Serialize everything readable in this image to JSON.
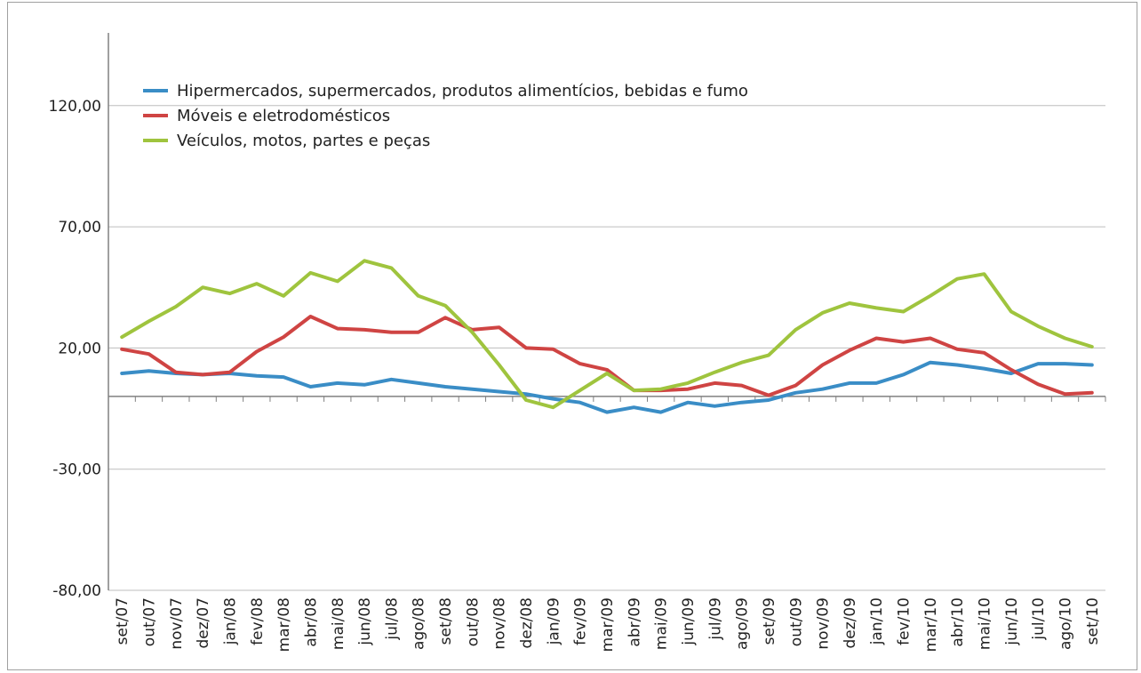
{
  "chart_data": {
    "type": "line",
    "title": "",
    "xlabel": "",
    "ylabel": "",
    "ylim": [
      -80,
      150
    ],
    "yticks": [
      "120,00",
      "70,00",
      "20,00",
      "-30,00",
      "-80,00"
    ],
    "ytick_values": [
      120,
      70,
      20,
      -30,
      -80
    ],
    "grid": true,
    "legend_position": "top-left",
    "categories": [
      "set/07",
      "out/07",
      "nov/07",
      "dez/07",
      "jan/08",
      "fev/08",
      "mar/08",
      "abr/08",
      "mai/08",
      "jun/08",
      "jul/08",
      "ago/08",
      "set/08",
      "out/08",
      "nov/08",
      "dez/08",
      "jan/09",
      "fev/09",
      "mar/09",
      "abr/09",
      "mai/09",
      "jun/09",
      "jul/09",
      "ago/09",
      "set/09",
      "out/09",
      "nov/09",
      "dez/09",
      "jan/10",
      "fev/10",
      "mar/10",
      "abr/10",
      "mai/10",
      "jun/10",
      "jul/10",
      "ago/10",
      "set/10"
    ],
    "series": [
      {
        "name": "Hipermercados, supermercados, produtos alimentícios, bebidas e fumo",
        "color": "#3a8dc6",
        "values": [
          9.5,
          10.5,
          9.5,
          9.0,
          9.5,
          8.5,
          8.0,
          4.0,
          5.5,
          4.8,
          7.0,
          5.5,
          4.0,
          3.0,
          2.0,
          1.0,
          -1.0,
          -2.5,
          -6.5,
          -4.5,
          -6.5,
          -2.5,
          -4.0,
          -2.5,
          -1.5,
          1.5,
          3.0,
          5.5,
          5.5,
          9.0,
          14.0,
          13.0,
          11.5,
          9.5,
          13.5,
          13.5,
          13.0
        ]
      },
      {
        "name": "Móveis e eletrodomésticos",
        "color": "#cf4443",
        "values": [
          19.5,
          17.5,
          10.0,
          9.0,
          10.0,
          18.5,
          24.5,
          33.0,
          28.0,
          27.5,
          26.5,
          26.5,
          32.5,
          27.5,
          28.5,
          20.0,
          19.5,
          13.5,
          11.0,
          2.5,
          2.5,
          3.0,
          5.5,
          4.5,
          0.5,
          4.5,
          13.0,
          19.0,
          24.0,
          22.5,
          24.0,
          19.5,
          18.0,
          11.0,
          5.0,
          1.0,
          1.5
        ]
      },
      {
        "name": "Veículos, motos, partes e peças",
        "color": "#9fc43e",
        "values": [
          24.5,
          31.0,
          37.0,
          45.0,
          42.5,
          46.5,
          41.5,
          51.0,
          47.5,
          56.0,
          53.0,
          41.5,
          37.5,
          26.5,
          13.0,
          -1.5,
          -4.5,
          2.5,
          9.5,
          2.5,
          3.0,
          5.5,
          10.0,
          14.0,
          17.0,
          27.5,
          34.5,
          38.5,
          36.5,
          35.0,
          41.5,
          48.5,
          50.5,
          35.0,
          29.0,
          24.0,
          20.5
        ]
      }
    ]
  }
}
